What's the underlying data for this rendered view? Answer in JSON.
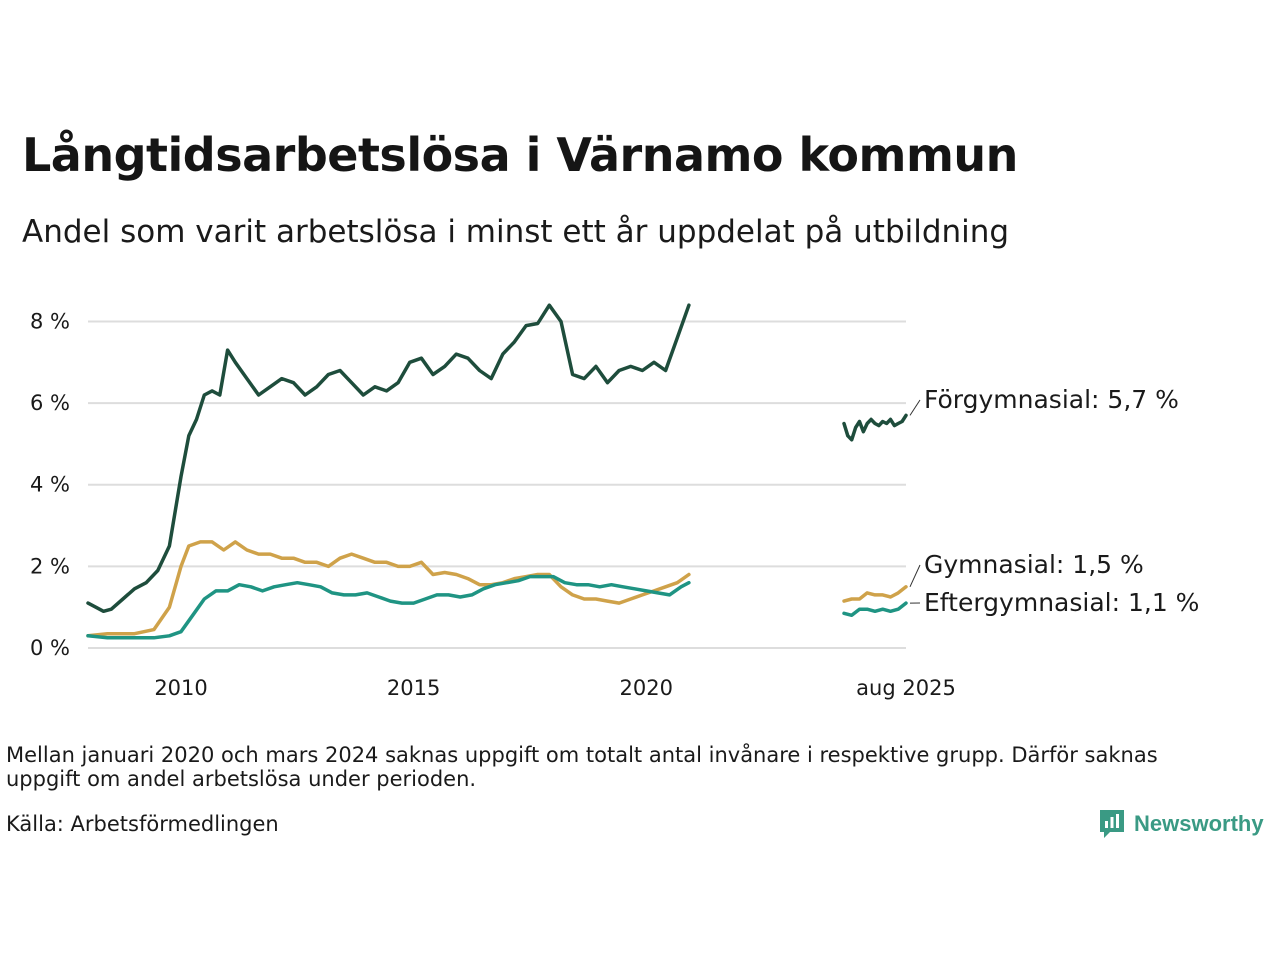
{
  "title": "Långtidsarbetslösa i Värnamo kommun",
  "subtitle": "Andel som varit arbetslösa i minst ett år uppdelat på utbildning",
  "note": "Mellan januari 2020 och mars 2024 saknas uppgift om totalt antal invånare i respektive grupp. Därför saknas uppgift om andel arbetslösa under perioden.",
  "source": "Källa: Arbetsförmedlingen",
  "brand": "Newsworthy",
  "colors": {
    "forgymnasial": "#1e4d3c",
    "gymnasial": "#cfa24a",
    "eftergymnasial": "#1f9483",
    "grid": "#dddddd",
    "brand": "#3a9a84"
  },
  "chart_data": {
    "type": "line",
    "y_unit": "%",
    "ylim": [
      0,
      8.6
    ],
    "xlim": [
      "2008-01",
      "2025-08"
    ],
    "y_ticks": [
      {
        "value": 0,
        "label": "0 %"
      },
      {
        "value": 2,
        "label": "2 %"
      },
      {
        "value": 4,
        "label": "4 %"
      },
      {
        "value": 6,
        "label": "6 %"
      },
      {
        "value": 8,
        "label": "8 %"
      }
    ],
    "x_ticks": [
      {
        "value": "2010-01",
        "label": "2010"
      },
      {
        "value": "2015-01",
        "label": "2015"
      },
      {
        "value": "2020-01",
        "label": "2020"
      },
      {
        "value": "2025-08",
        "label": "aug 2025"
      }
    ],
    "grid": true,
    "series": [
      {
        "name": "Förgymnasial",
        "end_label": "Förgymnasial: 5,7 %",
        "color_key": "forgymnasial",
        "segments": [
          {
            "x": [
              "2008-01",
              "2008-03",
              "2008-05",
              "2008-07",
              "2008-10",
              "2009-01",
              "2009-04",
              "2009-07",
              "2009-10",
              "2010-01",
              "2010-03",
              "2010-05",
              "2010-07",
              "2010-09",
              "2010-11",
              "2011-01",
              "2011-03",
              "2011-06",
              "2011-09",
              "2011-12",
              "2012-03",
              "2012-06",
              "2012-09",
              "2012-12",
              "2013-03",
              "2013-06",
              "2013-09",
              "2013-12",
              "2014-03",
              "2014-06",
              "2014-09",
              "2014-12",
              "2015-03",
              "2015-06",
              "2015-09",
              "2015-12",
              "2016-03",
              "2016-06",
              "2016-09",
              "2016-12",
              "2017-03",
              "2017-06",
              "2017-09",
              "2017-12",
              "2018-03",
              "2018-06",
              "2018-09",
              "2018-12",
              "2019-03",
              "2019-06",
              "2019-09",
              "2019-12",
              "2020-03",
              "2020-06",
              "2020-09",
              "2020-12"
            ],
            "y": [
              1.1,
              1.0,
              0.9,
              0.95,
              1.2,
              1.45,
              1.6,
              1.9,
              2.5,
              4.2,
              5.2,
              5.6,
              6.2,
              6.3,
              6.2,
              7.3,
              7.0,
              6.6,
              6.2,
              6.4,
              6.6,
              6.5,
              6.2,
              6.4,
              6.7,
              6.8,
              6.5,
              6.2,
              6.4,
              6.3,
              6.5,
              7.0,
              7.1,
              6.7,
              6.9,
              7.2,
              7.1,
              6.8,
              6.6,
              7.2,
              7.5,
              7.9,
              7.95,
              8.4,
              8.0,
              6.7,
              6.6,
              6.9,
              6.5,
              6.8,
              6.9,
              6.8,
              7.0,
              6.8,
              7.6,
              8.4
            ]
          },
          {
            "x": [
              "2024-04",
              "2024-05",
              "2024-06",
              "2024-07",
              "2024-08",
              "2024-09",
              "2024-10",
              "2024-11",
              "2024-12",
              "2025-01",
              "2025-02",
              "2025-03",
              "2025-04",
              "2025-05",
              "2025-06",
              "2025-07",
              "2025-08"
            ],
            "y": [
              5.5,
              5.2,
              5.1,
              5.4,
              5.55,
              5.3,
              5.5,
              5.6,
              5.5,
              5.45,
              5.55,
              5.5,
              5.6,
              5.45,
              5.5,
              5.55,
              5.7
            ]
          }
        ]
      },
      {
        "name": "Gymnasial",
        "end_label": "Gymnasial: 1,5 %",
        "color_key": "gymnasial",
        "segments": [
          {
            "x": [
              "2008-01",
              "2008-06",
              "2009-01",
              "2009-06",
              "2009-10",
              "2010-01",
              "2010-03",
              "2010-06",
              "2010-09",
              "2010-12",
              "2011-03",
              "2011-06",
              "2011-09",
              "2011-12",
              "2012-03",
              "2012-06",
              "2012-09",
              "2012-12",
              "2013-03",
              "2013-06",
              "2013-09",
              "2013-12",
              "2014-03",
              "2014-06",
              "2014-09",
              "2014-12",
              "2015-03",
              "2015-06",
              "2015-09",
              "2015-12",
              "2016-03",
              "2016-06",
              "2016-09",
              "2016-12",
              "2017-03",
              "2017-06",
              "2017-09",
              "2017-12",
              "2018-03",
              "2018-06",
              "2018-09",
              "2018-12",
              "2019-03",
              "2019-06",
              "2019-09",
              "2019-12",
              "2020-03",
              "2020-06",
              "2020-09",
              "2020-12"
            ],
            "y": [
              0.3,
              0.35,
              0.35,
              0.45,
              1.0,
              2.0,
              2.5,
              2.6,
              2.6,
              2.4,
              2.6,
              2.4,
              2.3,
              2.3,
              2.2,
              2.2,
              2.1,
              2.1,
              2.0,
              2.2,
              2.3,
              2.2,
              2.1,
              2.1,
              2.0,
              2.0,
              2.1,
              1.8,
              1.85,
              1.8,
              1.7,
              1.55,
              1.55,
              1.6,
              1.7,
              1.75,
              1.8,
              1.8,
              1.5,
              1.3,
              1.2,
              1.2,
              1.15,
              1.1,
              1.2,
              1.3,
              1.4,
              1.5,
              1.6,
              1.8
            ]
          },
          {
            "x": [
              "2024-04",
              "2024-06",
              "2024-08",
              "2024-10",
              "2024-12",
              "2025-02",
              "2025-04",
              "2025-06",
              "2025-08"
            ],
            "y": [
              1.15,
              1.2,
              1.2,
              1.35,
              1.3,
              1.3,
              1.25,
              1.35,
              1.5
            ]
          }
        ]
      },
      {
        "name": "Eftergymnasial",
        "end_label": "Eftergymnasial: 1,1 %",
        "color_key": "eftergymnasial",
        "segments": [
          {
            "x": [
              "2008-01",
              "2008-06",
              "2009-01",
              "2009-06",
              "2009-10",
              "2010-01",
              "2010-04",
              "2010-07",
              "2010-10",
              "2011-01",
              "2011-04",
              "2011-07",
              "2011-10",
              "2012-01",
              "2012-04",
              "2012-07",
              "2012-10",
              "2013-01",
              "2013-04",
              "2013-07",
              "2013-10",
              "2014-01",
              "2014-04",
              "2014-07",
              "2014-10",
              "2015-01",
              "2015-04",
              "2015-07",
              "2015-10",
              "2016-01",
              "2016-04",
              "2016-07",
              "2016-10",
              "2017-01",
              "2017-04",
              "2017-07",
              "2017-10",
              "2018-01",
              "2018-04",
              "2018-07",
              "2018-10",
              "2019-01",
              "2019-04",
              "2019-07",
              "2019-10",
              "2020-01",
              "2020-04",
              "2020-07",
              "2020-10",
              "2020-12"
            ],
            "y": [
              0.3,
              0.25,
              0.25,
              0.25,
              0.3,
              0.4,
              0.8,
              1.2,
              1.4,
              1.4,
              1.55,
              1.5,
              1.4,
              1.5,
              1.55,
              1.6,
              1.55,
              1.5,
              1.35,
              1.3,
              1.3,
              1.35,
              1.25,
              1.15,
              1.1,
              1.1,
              1.2,
              1.3,
              1.3,
              1.25,
              1.3,
              1.45,
              1.55,
              1.6,
              1.65,
              1.75,
              1.75,
              1.75,
              1.6,
              1.55,
              1.55,
              1.5,
              1.55,
              1.5,
              1.45,
              1.4,
              1.35,
              1.3,
              1.5,
              1.6
            ]
          },
          {
            "x": [
              "2024-04",
              "2024-06",
              "2024-08",
              "2024-10",
              "2024-12",
              "2025-02",
              "2025-04",
              "2025-06",
              "2025-08"
            ],
            "y": [
              0.85,
              0.8,
              0.95,
              0.95,
              0.9,
              0.95,
              0.9,
              0.95,
              1.1
            ]
          }
        ]
      }
    ]
  }
}
